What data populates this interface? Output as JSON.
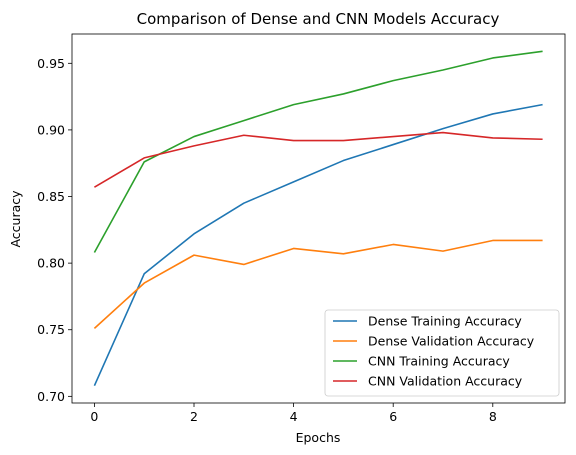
{
  "chart_data": {
    "type": "line",
    "title": "Comparison of Dense and CNN Models Accuracy",
    "xlabel": "Epochs",
    "ylabel": "Accuracy",
    "xlim": [
      -0.45,
      9.45
    ],
    "ylim": [
      0.695,
      0.972
    ],
    "xticks": [
      0,
      2,
      4,
      6,
      8
    ],
    "yticks": [
      0.7,
      0.75,
      0.8,
      0.85,
      0.9,
      0.95
    ],
    "ytick_labels": [
      "0.70",
      "0.75",
      "0.80",
      "0.85",
      "0.90",
      "0.95"
    ],
    "legend_position": "lower-right",
    "grid": false,
    "x": [
      0,
      1,
      2,
      3,
      4,
      5,
      6,
      7,
      8,
      9
    ],
    "series": [
      {
        "name": "Dense Training Accuracy",
        "color": "#1f77b4",
        "values": [
          0.708,
          0.792,
          0.822,
          0.845,
          0.861,
          0.877,
          0.889,
          0.901,
          0.912,
          0.919
        ]
      },
      {
        "name": "Dense Validation Accuracy",
        "color": "#ff7f0e",
        "values": [
          0.751,
          0.785,
          0.806,
          0.799,
          0.811,
          0.807,
          0.814,
          0.809,
          0.817,
          0.817
        ]
      },
      {
        "name": "CNN Training Accuracy",
        "color": "#2ca02c",
        "values": [
          0.808,
          0.876,
          0.895,
          0.907,
          0.919,
          0.927,
          0.937,
          0.945,
          0.954,
          0.959
        ]
      },
      {
        "name": "CNN Validation Accuracy",
        "color": "#d62728",
        "values": [
          0.857,
          0.879,
          0.888,
          0.896,
          0.892,
          0.892,
          0.895,
          0.898,
          0.894,
          0.893
        ]
      }
    ]
  }
}
